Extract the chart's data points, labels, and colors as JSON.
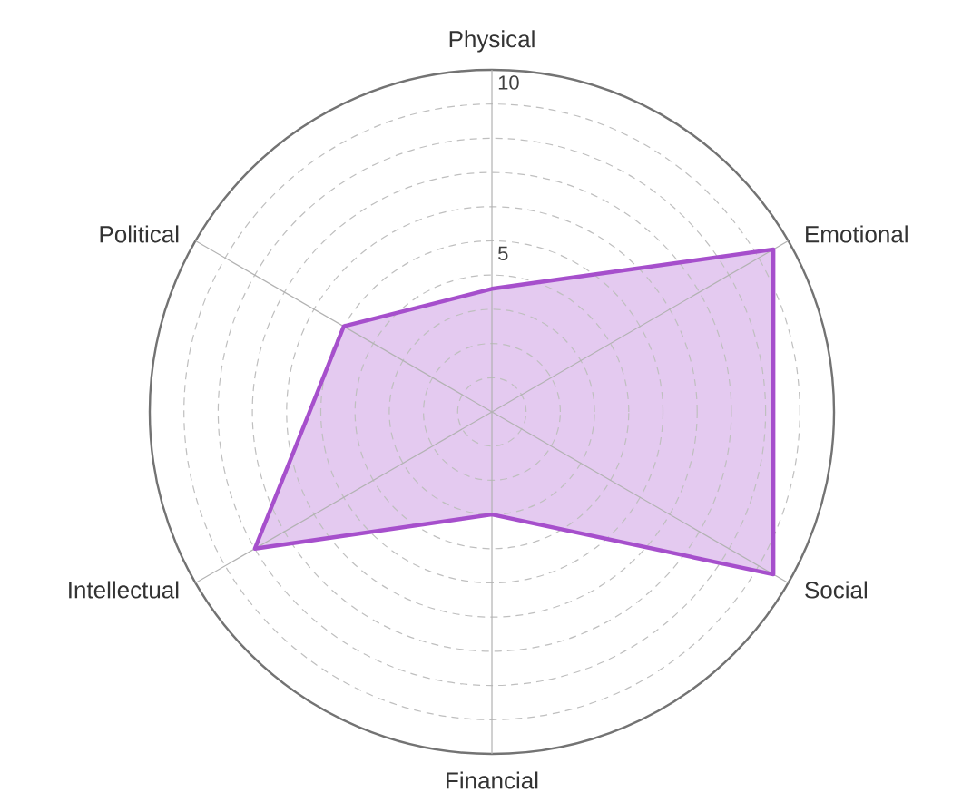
{
  "chart_data": {
    "type": "radar",
    "categories": [
      "Physical",
      "Emotional",
      "Social",
      "Financial",
      "Intellectual",
      "Political"
    ],
    "series": [
      {
        "color": "#a64fcc",
        "values": [
          3.6,
          9.5,
          9.5,
          3,
          8,
          5
        ]
      }
    ],
    "ylim": [
      0,
      10
    ],
    "yticks": [
      5,
      10
    ],
    "grid": true
  }
}
